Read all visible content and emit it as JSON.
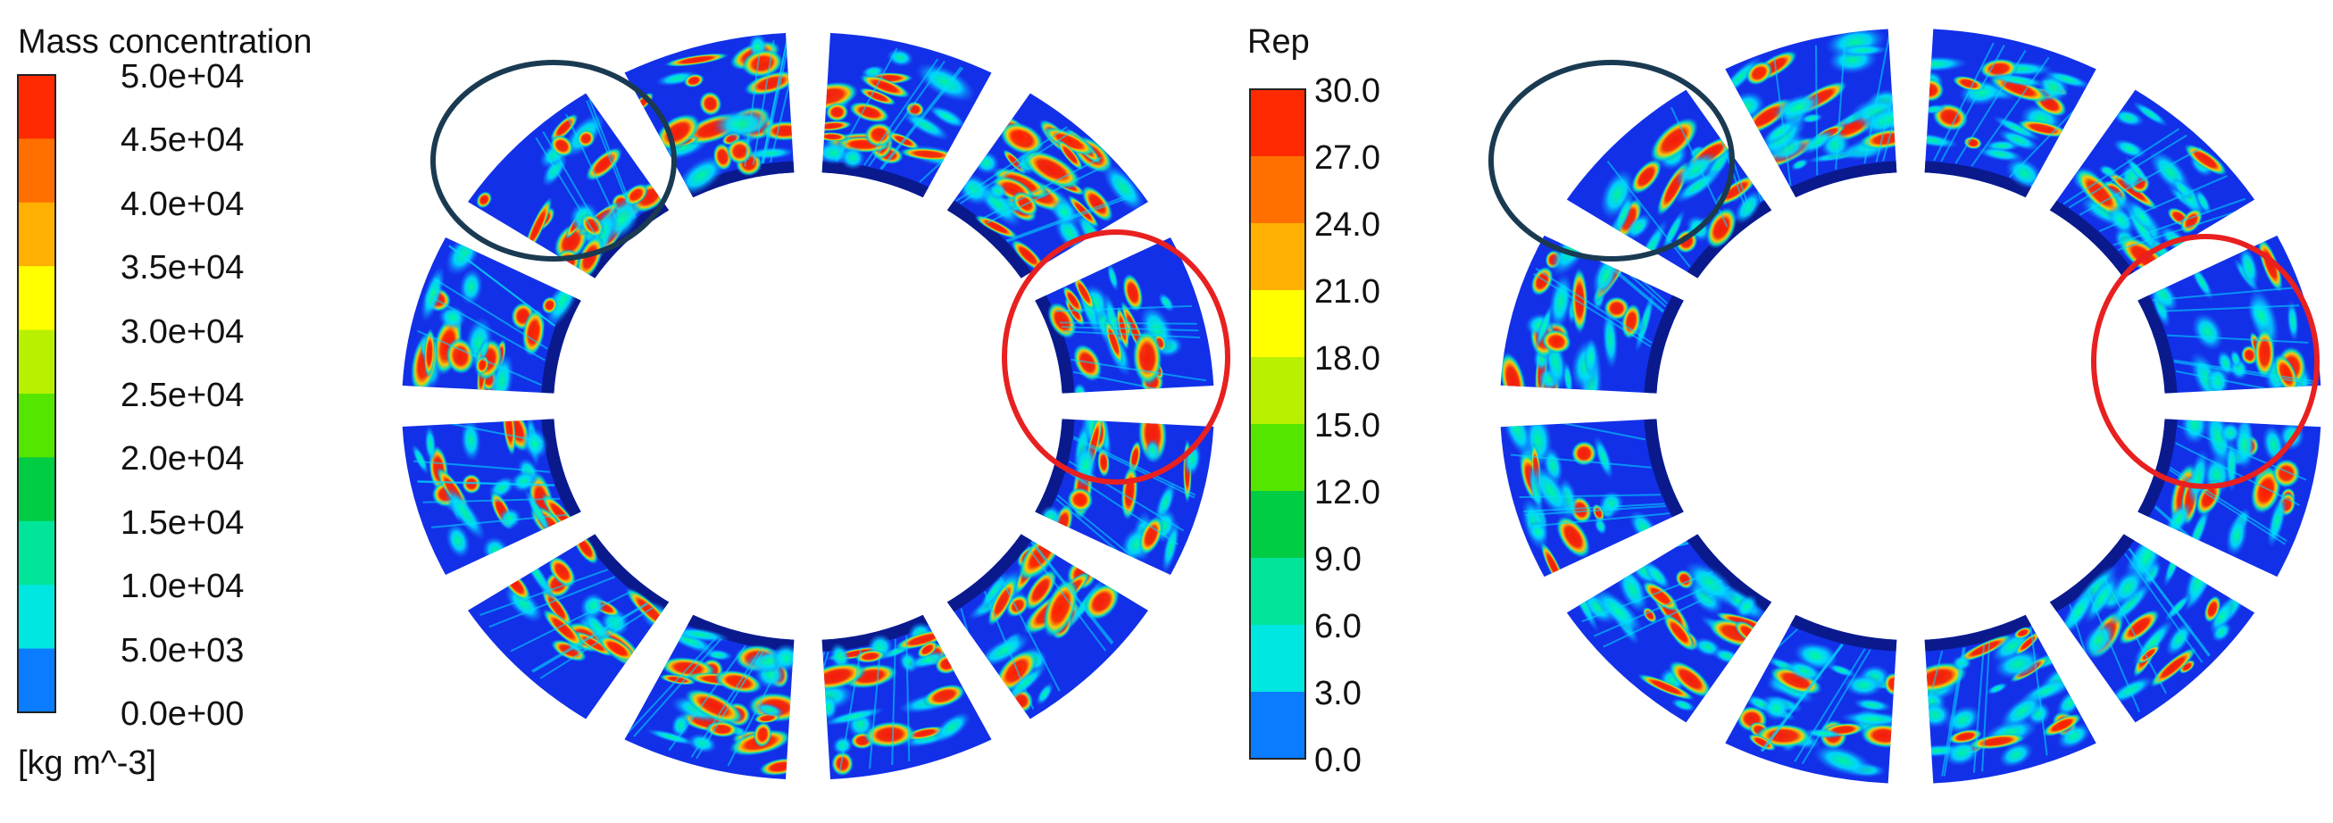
{
  "legend_left": {
    "title": "Mass concentration",
    "unit": "[kg m^-3]",
    "ticks": [
      "5.0e+04",
      "4.5e+04",
      "4.0e+04",
      "3.5e+04",
      "3.0e+04",
      "2.5e+04",
      "2.0e+04",
      "1.5e+04",
      "1.0e+04",
      "5.0e+03",
      "0.0e+00"
    ]
  },
  "legend_right": {
    "title": "Rep",
    "ticks": [
      "30.0",
      "27.0",
      "24.0",
      "21.0",
      "18.0",
      "15.0",
      "12.0",
      "9.0",
      "6.0",
      "3.0",
      "0.0"
    ]
  },
  "colormap": [
    "#0024ff",
    "#0a7cff",
    "#00b4ff",
    "#00e6e0",
    "#00e59a",
    "#00cc44",
    "#55e600",
    "#b8f000",
    "#ffff00",
    "#ffb000",
    "#ff7000",
    "#ff2a00"
  ],
  "colors": {
    "highlight_dark": "#1a3a52",
    "highlight_red": "#e82020",
    "blade_base": "#1230e8"
  }
}
